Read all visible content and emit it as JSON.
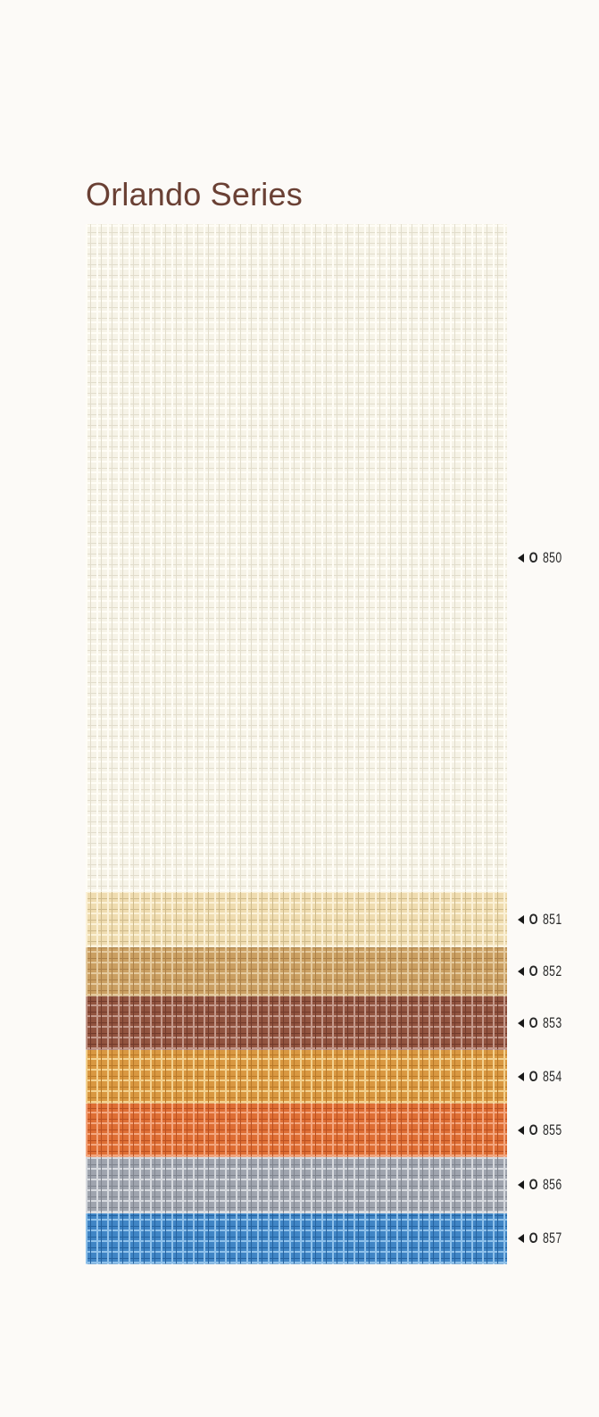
{
  "title": "Orlando Series",
  "swatches": [
    {
      "prefix": "O",
      "code": "850",
      "base": "#f6f3e7",
      "line": "#e2dccb",
      "light": "#fffdf6"
    },
    {
      "prefix": "O",
      "code": "851",
      "base": "#efdcae",
      "line": "#cdb888",
      "light": "#fbf1d6"
    },
    {
      "prefix": "O",
      "code": "852",
      "base": "#c99d5e",
      "line": "#a97d43",
      "light": "#e4c89b"
    },
    {
      "prefix": "O",
      "code": "853",
      "base": "#8e4e3a",
      "line": "#6d3425",
      "light": "#c39688"
    },
    {
      "prefix": "O",
      "code": "854",
      "base": "#d8953c",
      "line": "#b67422",
      "light": "#f3d08c"
    },
    {
      "prefix": "O",
      "code": "855",
      "base": "#de6a2e",
      "line": "#b84b1b",
      "light": "#f3a47b"
    },
    {
      "prefix": "O",
      "code": "856",
      "base": "#9ca2ac",
      "line": "#7c828c",
      "light": "#d5d8de"
    },
    {
      "prefix": "O",
      "code": "857",
      "base": "#3a82c4",
      "line": "#1f5f9e",
      "light": "#8cc0ea"
    }
  ]
}
